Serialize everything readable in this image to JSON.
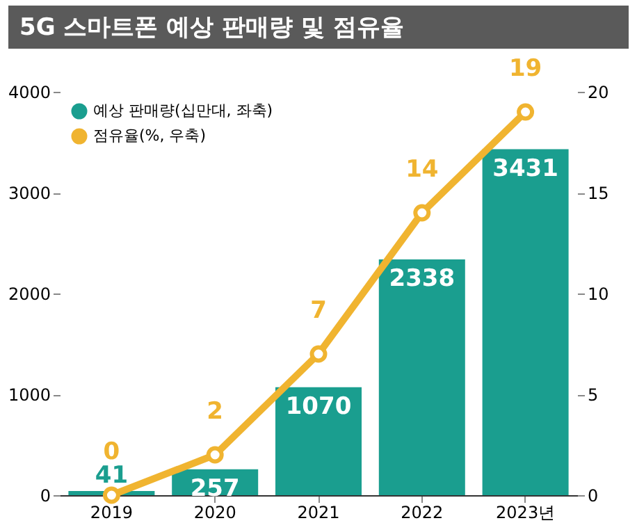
{
  "chart_data": {
    "type": "bar",
    "title": "5G 스마트폰 예상 판매량 및 점유율",
    "categories": [
      "2019",
      "2020",
      "2021",
      "2022",
      "2023년"
    ],
    "series": [
      {
        "name": "예상 판매량(십만대, 좌축)",
        "color": "#1a9e8f",
        "values": [
          41,
          257,
          1070,
          2338,
          3431
        ]
      },
      {
        "name": "점유율(%, 우축)",
        "type": "line",
        "axis": "y2",
        "color": "#f0b430",
        "values": [
          0,
          2,
          7,
          14,
          19
        ]
      }
    ],
    "ylim": [
      0,
      4000
    ],
    "yticks": [
      0,
      1000,
      2000,
      3000,
      4000
    ],
    "y2lim": [
      0,
      20
    ],
    "y2ticks": [
      0,
      5,
      10,
      15,
      20
    ],
    "data_labels": true,
    "legend": "top left",
    "marker": "circle",
    "line_style": "solid"
  }
}
